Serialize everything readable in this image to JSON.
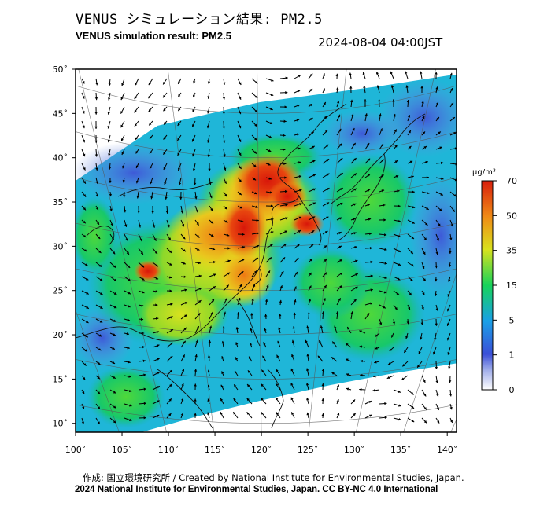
{
  "header": {
    "title_ja": "VENUS シミュレーション結果: PM2.5",
    "title_en": "VENUS simulation result: PM2.5",
    "timestamp": "2024-08-04 04:00JST"
  },
  "map": {
    "lon_labels": [
      "100˚",
      "105˚",
      "110˚",
      "115˚",
      "120˚",
      "125˚",
      "130˚",
      "135˚",
      "140˚"
    ],
    "lon_values": [
      100,
      105,
      110,
      115,
      120,
      125,
      130,
      135,
      140
    ],
    "lat_labels": [
      "10˚",
      "15˚",
      "20˚",
      "25˚",
      "30˚",
      "35˚",
      "40˚",
      "45˚",
      "50˚"
    ],
    "lat_values": [
      10,
      15,
      20,
      25,
      30,
      35,
      40,
      45,
      50
    ],
    "lon_range": [
      100,
      141
    ],
    "lat_range": [
      9,
      50
    ]
  },
  "colorbar": {
    "unit": "µg/m³",
    "tick_labels": [
      "0",
      "1",
      "5",
      "15",
      "35",
      "50",
      "70"
    ],
    "colors": [
      "#ffffff",
      "#3b4fd8",
      "#19a0e6",
      "#17d35a",
      "#d8e21e",
      "#f08a16",
      "#d81e0c"
    ]
  },
  "footer": {
    "credit_line": "作成: 国立環境研究所 / Created by National Institute for Environmental Studies, Japan.",
    "license_line": "2024 National Institute for Environmental Studies, Japan. CC BY-NC 4.0 International"
  }
}
